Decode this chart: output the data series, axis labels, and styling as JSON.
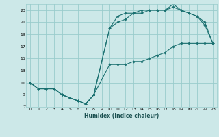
{
  "title": "",
  "xlabel": "Humidex (Indice chaleur)",
  "bg_color": "#cce8e8",
  "grid_color": "#99cccc",
  "line_color": "#1a7070",
  "xlim": [
    -0.5,
    23.5
  ],
  "ylim": [
    7,
    24
  ],
  "xticks": [
    0,
    1,
    2,
    3,
    4,
    5,
    6,
    7,
    8,
    9,
    10,
    11,
    12,
    13,
    14,
    15,
    16,
    17,
    18,
    19,
    20,
    21,
    22,
    23
  ],
  "yticks": [
    7,
    9,
    11,
    13,
    15,
    17,
    19,
    21,
    23
  ],
  "line1_x": [
    0,
    1,
    2,
    3,
    4,
    5,
    6,
    7,
    8,
    10,
    11,
    12,
    13,
    14,
    15,
    16,
    17,
    18,
    19,
    20,
    21,
    22,
    23
  ],
  "line1_y": [
    11,
    10,
    10,
    10,
    9,
    8.5,
    8,
    7.5,
    9,
    14,
    14,
    14,
    14.5,
    14.5,
    15,
    15.5,
    16,
    17,
    17.5,
    17.5,
    17.5,
    17.5,
    17.5
  ],
  "line2_x": [
    0,
    1,
    2,
    3,
    4,
    5,
    6,
    7,
    8,
    10,
    11,
    12,
    13,
    14,
    15,
    16,
    17,
    18,
    19,
    20,
    21,
    22,
    23
  ],
  "line2_y": [
    11,
    10,
    10,
    10,
    9,
    8.5,
    8,
    7.5,
    9,
    20,
    21,
    21.5,
    22.5,
    22.5,
    23,
    23,
    23,
    23.5,
    23,
    22.5,
    22,
    20.5,
    17.5
  ],
  "line3_x": [
    0,
    1,
    2,
    3,
    4,
    5,
    6,
    7,
    8,
    10,
    11,
    12,
    13,
    14,
    15,
    16,
    17,
    18,
    19,
    20,
    21,
    22,
    23
  ],
  "line3_y": [
    11,
    10,
    10,
    10,
    9,
    8.5,
    8,
    7.5,
    9,
    20,
    22,
    22.5,
    22.5,
    23,
    23,
    23,
    23,
    24,
    23,
    22.5,
    22,
    21,
    17.5
  ]
}
